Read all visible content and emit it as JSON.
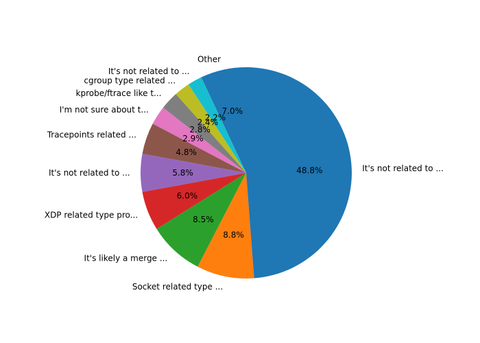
{
  "chart_data": {
    "type": "pie",
    "start_angle_deg": 90,
    "direction": "counterclockwise",
    "slices": [
      {
        "label": "Other",
        "value": 7.0,
        "pct_label": "7.0%",
        "color": "#1f77b4"
      },
      {
        "label": "It's not related to ...",
        "value": 2.2,
        "pct_label": "2.2%",
        "color": "#17becf"
      },
      {
        "label": "cgroup type related ...",
        "value": 2.4,
        "pct_label": "2.4%",
        "color": "#bcbd22"
      },
      {
        "label": "kprobe/ftrace like t...",
        "value": 2.8,
        "pct_label": "2.8%",
        "color": "#7f7f7f"
      },
      {
        "label": "I'm not sure about t...",
        "value": 2.9,
        "pct_label": "2.9%",
        "color": "#e377c2"
      },
      {
        "label": "Tracepoints related ...",
        "value": 4.8,
        "pct_label": "4.8%",
        "color": "#8c564b"
      },
      {
        "label": "It's not related to ...",
        "value": 5.8,
        "pct_label": "5.8%",
        "color": "#9467bd"
      },
      {
        "label": "XDP related type pro...",
        "value": 6.0,
        "pct_label": "6.0%",
        "color": "#d62728"
      },
      {
        "label": "It's likely a merge ...",
        "value": 8.5,
        "pct_label": "8.5%",
        "color": "#2ca02c"
      },
      {
        "label": "Socket related type ...",
        "value": 8.8,
        "pct_label": "8.8%",
        "color": "#ff7f0e"
      },
      {
        "label": "It's not related to ...",
        "value": 48.8,
        "pct_label": "48.8%",
        "color": "#1f77b4"
      }
    ]
  }
}
